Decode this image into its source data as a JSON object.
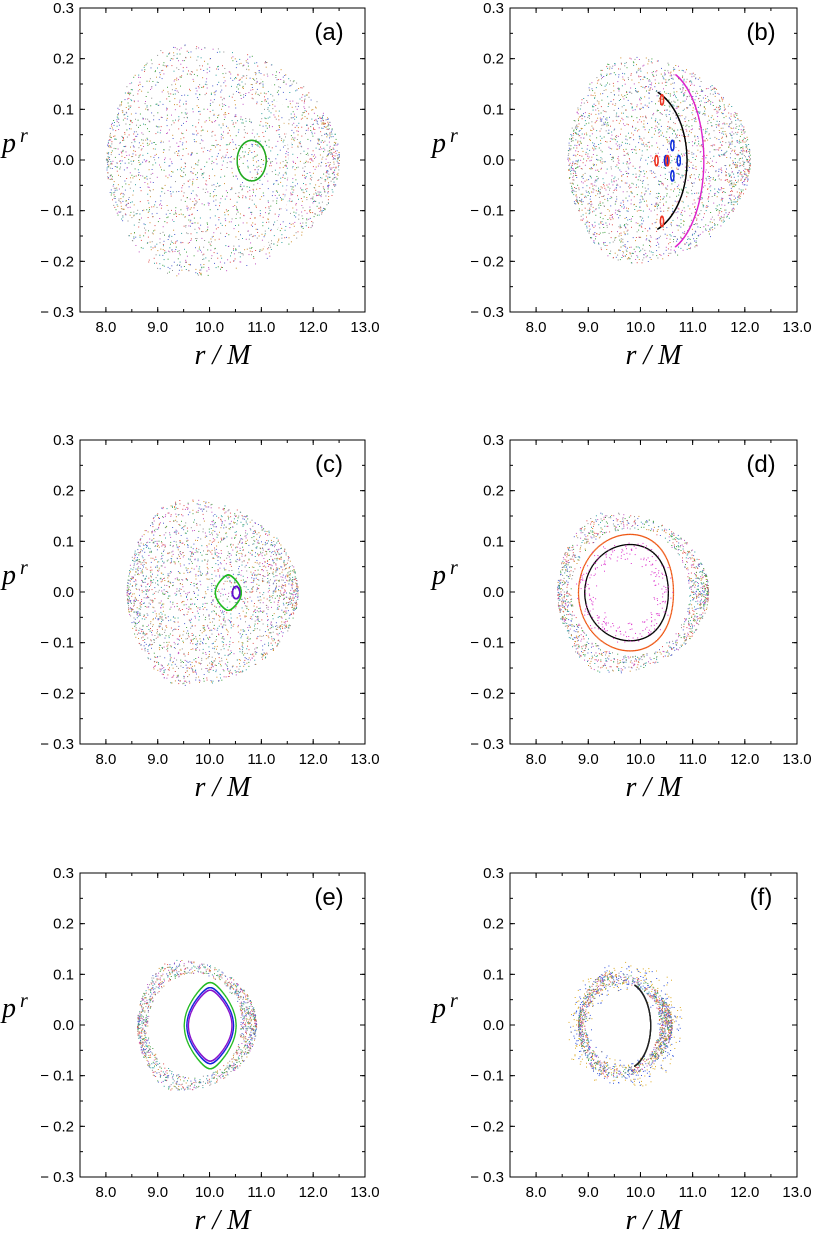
{
  "figure": {
    "panels": [
      "(a)",
      "(b)",
      "(c)",
      "(d)",
      "(e)",
      "(f)"
    ]
  },
  "chart_data": [
    {
      "type": "scatter",
      "panel_label": "(a)",
      "xlabel": "r / M",
      "ylabel": "p^r",
      "xlim": [
        7.5,
        13.0
      ],
      "ylim": [
        -0.3,
        0.3
      ],
      "xticks": [
        "8.0",
        "9.0",
        "10.0",
        "11.0",
        "12.0",
        "13.0"
      ],
      "yticks": [
        "0.3",
        "0.2",
        "0.1",
        "0.0",
        "− 0.1",
        "− 0.2",
        "− 0.3"
      ],
      "grid": false,
      "chaotic_region": {
        "r_range": [
          8.0,
          12.5
        ],
        "pr_max": 0.23
      },
      "orbits": [
        {
          "color": "#22aa22",
          "kind": "island",
          "center": [
            10.8,
            0.0
          ],
          "radii": [
            0.28,
            0.04
          ]
        },
        {
          "color": "#ffffff",
          "kind": "gap-arc",
          "center": [
            10.6,
            0.0
          ],
          "radii": [
            1.7,
            0.17
          ]
        }
      ]
    },
    {
      "type": "scatter",
      "panel_label": "(b)",
      "xlabel": "r / M",
      "ylabel": "p^r",
      "xlim": [
        7.5,
        13.0
      ],
      "ylim": [
        -0.3,
        0.3
      ],
      "xticks": [
        "8.0",
        "9.0",
        "10.0",
        "11.0",
        "12.0",
        "13.0"
      ],
      "yticks": [
        "0.3",
        "0.2",
        "0.1",
        "0.0",
        "− 0.1",
        "− 0.2",
        "− 0.3"
      ],
      "grid": false,
      "chaotic_region": {
        "r_range": [
          8.6,
          12.1
        ],
        "pr_max": 0.205
      },
      "orbits": [
        {
          "color": "#000000",
          "kind": "arc",
          "center": [
            10.0,
            0.0
          ],
          "radii": [
            1.6,
            0.135
          ]
        },
        {
          "color": "#1133dd",
          "kind": "islands",
          "center": [
            10.6,
            0.0
          ],
          "radii": [
            0.35,
            0.03
          ]
        },
        {
          "color": "#dd22cc",
          "kind": "arc",
          "center": [
            10.35,
            0.0
          ],
          "radii": [
            1.55,
            0.17
          ]
        },
        {
          "color": "#ee3322",
          "kind": "islands",
          "center": [
            10.4,
            0.0
          ],
          "radii": [
            0.3,
            0.12
          ]
        }
      ]
    },
    {
      "type": "scatter",
      "panel_label": "(c)",
      "xlabel": "r / M",
      "ylabel": "p^r",
      "xlim": [
        7.5,
        13.0
      ],
      "ylim": [
        -0.3,
        0.3
      ],
      "xticks": [
        "8.0",
        "9.0",
        "10.0",
        "11.0",
        "12.0",
        "13.0"
      ],
      "yticks": [
        "0.3",
        "0.2",
        "0.1",
        "0.0",
        "− 0.1",
        "− 0.2",
        "− 0.3"
      ],
      "grid": false,
      "chaotic_region": {
        "r_range": [
          8.4,
          11.7
        ],
        "pr_max": 0.185
      },
      "orbits": [
        {
          "color": "#22bb22",
          "kind": "crescent",
          "center": [
            10.35,
            0.0
          ],
          "radii": [
            0.25,
            0.035
          ]
        },
        {
          "color": "#6611cc",
          "kind": "island",
          "center": [
            10.5,
            0.0
          ],
          "radii": [
            0.07,
            0.012
          ]
        }
      ]
    },
    {
      "type": "scatter",
      "panel_label": "(d)",
      "xlabel": "r / M",
      "ylabel": "p^r",
      "xlim": [
        7.5,
        13.0
      ],
      "ylim": [
        -0.3,
        0.3
      ],
      "xticks": [
        "8.0",
        "9.0",
        "10.0",
        "11.0",
        "12.0",
        "13.0"
      ],
      "yticks": [
        "0.3",
        "0.2",
        "0.1",
        "0.0",
        "− 0.1",
        "− 0.2",
        "− 0.3"
      ],
      "grid": false,
      "chaotic_region": {
        "r_range": [
          8.4,
          11.3
        ],
        "pr_max": 0.16
      },
      "orbits": [
        {
          "color": "#ee5511",
          "kind": "torus",
          "center": [
            9.8,
            0.0
          ],
          "radii": [
            1.0,
            0.115
          ]
        },
        {
          "color": "#000000",
          "kind": "torus",
          "center": [
            9.8,
            0.0
          ],
          "radii": [
            0.88,
            0.095
          ]
        },
        {
          "color": "#dd33cc",
          "kind": "chaotic-band",
          "center": [
            9.7,
            0.0
          ],
          "radii": [
            0.75,
            0.08
          ]
        }
      ]
    },
    {
      "type": "scatter",
      "panel_label": "(e)",
      "xlabel": "r / M",
      "ylabel": "p^r",
      "xlim": [
        7.5,
        13.0
      ],
      "ylim": [
        -0.3,
        0.3
      ],
      "xticks": [
        "8.0",
        "9.0",
        "10.0",
        "11.0",
        "12.0",
        "13.0"
      ],
      "yticks": [
        "0.3",
        "0.2",
        "0.1",
        "0.0",
        "− 0.1",
        "− 0.2",
        "− 0.3"
      ],
      "grid": false,
      "chaotic_region": {
        "r_range": [
          8.6,
          10.9
        ],
        "pr_max": 0.13
      },
      "orbits": [
        {
          "color": "#1122dd",
          "kind": "crescent",
          "center": [
            10.0,
            0.0
          ],
          "radii": [
            0.45,
            0.075
          ]
        },
        {
          "color": "#8811cc",
          "kind": "crescent",
          "center": [
            10.0,
            0.0
          ],
          "radii": [
            0.42,
            0.07
          ]
        },
        {
          "color": "#22bb22",
          "kind": "crescent",
          "center": [
            10.0,
            0.0
          ],
          "radii": [
            0.5,
            0.085
          ]
        }
      ]
    },
    {
      "type": "scatter",
      "panel_label": "(f)",
      "xlabel": "r / M",
      "ylabel": "p^r",
      "xlim": [
        7.5,
        13.0
      ],
      "ylim": [
        -0.3,
        0.3
      ],
      "xticks": [
        "8.0",
        "9.0",
        "10.0",
        "11.0",
        "12.0",
        "13.0"
      ],
      "yticks": [
        "0.3",
        "0.2",
        "0.1",
        "0.0",
        "− 0.1",
        "− 0.2",
        "− 0.3"
      ],
      "grid": false,
      "chaotic_region": {
        "r_range": [
          8.8,
          10.6
        ],
        "pr_max": 0.105
      },
      "orbits": [
        {
          "color": "#ddaa22",
          "kind": "band",
          "center": [
            9.7,
            0.0
          ],
          "radii": [
            0.9,
            0.1
          ]
        },
        {
          "color": "#3355dd",
          "kind": "band",
          "center": [
            9.7,
            0.0
          ],
          "radii": [
            0.85,
            0.095
          ]
        },
        {
          "color": "#222222",
          "kind": "arc",
          "center": [
            9.7,
            0.0
          ],
          "radii": [
            0.88,
            0.08
          ]
        }
      ]
    }
  ]
}
